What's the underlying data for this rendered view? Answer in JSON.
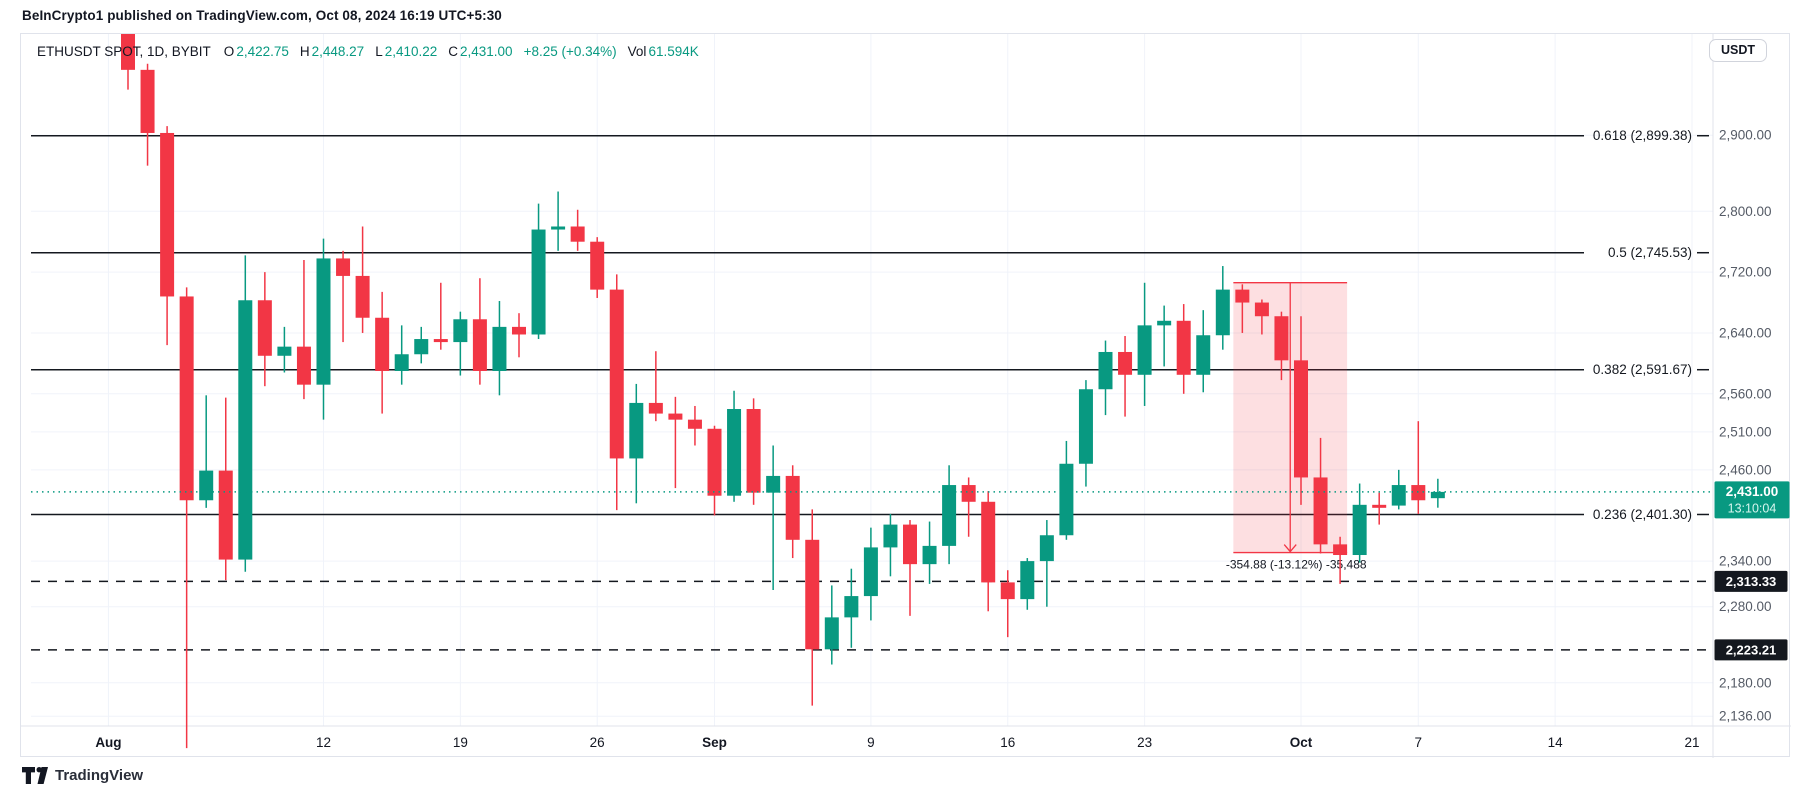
{
  "page": {
    "header": "BeInCrypto1 published on TradingView.com, Oct 08, 2024 16:19 UTC+5:30"
  },
  "legend": {
    "symbol": "ETHUSDT SPOT, 1D, BYBIT",
    "o_label": "O",
    "o": "2,422.75",
    "h_label": "H",
    "h": "2,448.27",
    "l_label": "L",
    "l": "2,410.22",
    "c_label": "C",
    "c": "2,431.00",
    "change": "+8.25 (+0.34%)",
    "vol_label": "Vol",
    "vol": "61.594K"
  },
  "price_axis": {
    "currency": "USDT",
    "ticks": [
      {
        "label": "2,900.00",
        "value": 2900
      },
      {
        "label": "2,800.00",
        "value": 2800
      },
      {
        "label": "2,720.00",
        "value": 2720
      },
      {
        "label": "2,640.00",
        "value": 2640
      },
      {
        "label": "2,560.00",
        "value": 2560
      },
      {
        "label": "2,510.00",
        "value": 2510
      },
      {
        "label": "2,460.00",
        "value": 2460
      },
      {
        "label": "2,340.00",
        "value": 2340
      },
      {
        "label": "2,280.00",
        "value": 2280
      },
      {
        "label": "2,180.00",
        "value": 2180
      },
      {
        "label": "2,136.00",
        "value": 2136
      }
    ],
    "current_price": {
      "label": "2,431.00",
      "countdown": "13:10:04",
      "value": 2431.0
    },
    "level_badges": [
      {
        "label": "2,313.33",
        "value": 2313.33
      },
      {
        "label": "2,223.21",
        "value": 2223.21
      }
    ]
  },
  "footer": {
    "brand": "TradingView"
  },
  "colors": {
    "up": "#089981",
    "down": "#F23645",
    "text": "#131722",
    "axis_text": "#555B66",
    "grid": "#F0F3FA",
    "border": "#E0E3EB",
    "level_line": "#14181F",
    "badge_dark": "#14181F",
    "badge_teal": "#089981",
    "measure_fill": "rgba(242,54,69,0.16)",
    "measure_stroke": "#F23645"
  },
  "chart_data": {
    "type": "candlestick",
    "title": "ETHUSDT SPOT, 1D, BYBIT",
    "x_unit": "day",
    "grid": true,
    "ylim_visible": [
      2100,
      3040
    ],
    "price_line": {
      "value": 2431.0,
      "style": "dotted"
    },
    "fib_levels": [
      {
        "label": "0.618 (2,899.38)",
        "value": 2899.38
      },
      {
        "label": "0.5 (2,745.53)",
        "value": 2745.53
      },
      {
        "label": "0.382 (2,591.67)",
        "value": 2591.67
      },
      {
        "label": "0.236 (2,401.30)",
        "value": 2401.3
      }
    ],
    "dashed_levels": [
      2313.33,
      2223.21
    ],
    "measure_tool": {
      "label": "-354.88 (-13.12%) -35,488",
      "price_from": 2706.08,
      "price_to": 2351.2,
      "bar_from": 57,
      "bar_to": 62
    },
    "time_ticks": [
      {
        "label": "Aug",
        "index": -1,
        "bold": true
      },
      {
        "label": "12",
        "index": 10,
        "bold": false
      },
      {
        "label": "19",
        "index": 17,
        "bold": false
      },
      {
        "label": "26",
        "index": 24,
        "bold": false
      },
      {
        "label": "Sep",
        "index": 30,
        "bold": true
      },
      {
        "label": "9",
        "index": 38,
        "bold": false
      },
      {
        "label": "16",
        "index": 45,
        "bold": false
      },
      {
        "label": "23",
        "index": 52,
        "bold": false
      },
      {
        "label": "Oct",
        "index": 60,
        "bold": true
      },
      {
        "label": "7",
        "index": 66,
        "bold": false
      },
      {
        "label": "14",
        "index": 73,
        "bold": false
      },
      {
        "label": "21",
        "index": 80,
        "bold": false
      }
    ],
    "candles": [
      [
        "08-02",
        3168,
        3210,
        2960,
        2986
      ],
      [
        "08-03",
        2986,
        2994,
        2860,
        2903
      ],
      [
        "08-04",
        2903,
        2912,
        2624,
        2688
      ],
      [
        "08-05",
        2688,
        2700,
        2094,
        2420
      ],
      [
        "08-06",
        2420,
        2558,
        2410,
        2459
      ],
      [
        "08-07",
        2459,
        2555,
        2315,
        2342
      ],
      [
        "08-08",
        2342,
        2742,
        2326,
        2683
      ],
      [
        "08-09",
        2683,
        2720,
        2570,
        2610
      ],
      [
        "08-10",
        2610,
        2648,
        2588,
        2622
      ],
      [
        "08-11",
        2622,
        2736,
        2553,
        2572
      ],
      [
        "08-12",
        2572,
        2764,
        2526,
        2738
      ],
      [
        "08-13",
        2738,
        2748,
        2628,
        2715
      ],
      [
        "08-14",
        2715,
        2780,
        2640,
        2660
      ],
      [
        "08-15",
        2660,
        2694,
        2534,
        2590
      ],
      [
        "08-16",
        2590,
        2650,
        2572,
        2612
      ],
      [
        "08-17",
        2612,
        2648,
        2600,
        2632
      ],
      [
        "08-18",
        2632,
        2706,
        2618,
        2628
      ],
      [
        "08-19",
        2628,
        2668,
        2584,
        2658
      ],
      [
        "08-20",
        2658,
        2712,
        2572,
        2590
      ],
      [
        "08-21",
        2590,
        2682,
        2558,
        2648
      ],
      [
        "08-22",
        2648,
        2666,
        2608,
        2638
      ],
      [
        "08-23",
        2638,
        2810,
        2632,
        2776
      ],
      [
        "08-24",
        2776,
        2826,
        2748,
        2780
      ],
      [
        "08-25",
        2780,
        2802,
        2748,
        2760
      ],
      [
        "08-26",
        2760,
        2766,
        2686,
        2697
      ],
      [
        "08-27",
        2697,
        2717,
        2407,
        2475
      ],
      [
        "08-28",
        2475,
        2573,
        2416,
        2548
      ],
      [
        "08-29",
        2548,
        2616,
        2524,
        2534
      ],
      [
        "08-30",
        2534,
        2556,
        2436,
        2526
      ],
      [
        "08-31",
        2526,
        2544,
        2492,
        2514
      ],
      [
        "09-01",
        2514,
        2518,
        2400,
        2426
      ],
      [
        "09-02",
        2426,
        2564,
        2418,
        2540
      ],
      [
        "09-03",
        2540,
        2554,
        2414,
        2430
      ],
      [
        "09-04",
        2430,
        2492,
        2302,
        2452
      ],
      [
        "09-05",
        2452,
        2466,
        2344,
        2368
      ],
      [
        "09-06",
        2368,
        2408,
        2150,
        2224
      ],
      [
        "09-07",
        2224,
        2308,
        2204,
        2266
      ],
      [
        "09-08",
        2266,
        2330,
        2226,
        2294
      ],
      [
        "09-09",
        2294,
        2384,
        2262,
        2358
      ],
      [
        "09-10",
        2358,
        2402,
        2320,
        2388
      ],
      [
        "09-11",
        2388,
        2394,
        2268,
        2336
      ],
      [
        "09-12",
        2336,
        2392,
        2310,
        2360
      ],
      [
        "09-13",
        2360,
        2466,
        2336,
        2440
      ],
      [
        "09-14",
        2440,
        2450,
        2372,
        2418
      ],
      [
        "09-15",
        2418,
        2432,
        2274,
        2312
      ],
      [
        "09-16",
        2312,
        2328,
        2240,
        2290
      ],
      [
        "09-17",
        2290,
        2344,
        2276,
        2340
      ],
      [
        "09-18",
        2340,
        2394,
        2280,
        2374
      ],
      [
        "09-19",
        2374,
        2498,
        2368,
        2468
      ],
      [
        "09-20",
        2468,
        2578,
        2438,
        2566
      ],
      [
        "09-21",
        2566,
        2630,
        2532,
        2615
      ],
      [
        "09-22",
        2615,
        2636,
        2530,
        2585
      ],
      [
        "09-23",
        2585,
        2706,
        2544,
        2650
      ],
      [
        "09-24",
        2650,
        2676,
        2596,
        2656
      ],
      [
        "09-25",
        2656,
        2678,
        2560,
        2585
      ],
      [
        "09-26",
        2585,
        2670,
        2562,
        2637
      ],
      [
        "09-27",
        2637,
        2728,
        2618,
        2697
      ],
      [
        "09-28",
        2697,
        2704,
        2640,
        2680
      ],
      [
        "09-29",
        2680,
        2684,
        2638,
        2662
      ],
      [
        "09-30",
        2662,
        2668,
        2578,
        2604
      ],
      [
        "10-01",
        2604,
        2662,
        2414,
        2450
      ],
      [
        "10-02",
        2450,
        2502,
        2350,
        2362
      ],
      [
        "10-03",
        2362,
        2372,
        2310,
        2348
      ],
      [
        "10-04",
        2348,
        2442,
        2338,
        2414
      ],
      [
        "10-05",
        2414,
        2430,
        2388,
        2413
      ],
      [
        "10-06",
        2413,
        2460,
        2408,
        2440
      ],
      [
        "10-07",
        2440,
        2524,
        2402,
        2420
      ],
      [
        "10-08",
        2422.75,
        2448.27,
        2410.22,
        2431.0
      ]
    ]
  }
}
